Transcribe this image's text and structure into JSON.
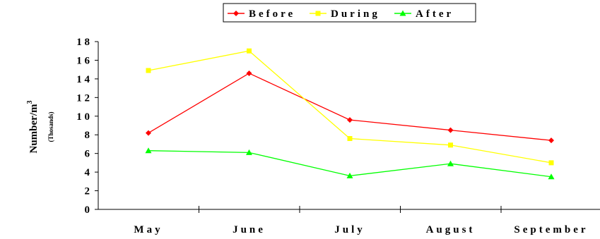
{
  "chart_data": {
    "type": "line",
    "categories": [
      "May",
      "June",
      "July",
      "August",
      "September"
    ],
    "series": [
      {
        "name": "Before",
        "color": "#ff0000",
        "marker": "diamond",
        "values": [
          8.2,
          14.6,
          9.6,
          8.5,
          7.4
        ]
      },
      {
        "name": "During",
        "color": "#ffff00",
        "marker": "square",
        "values": [
          14.9,
          17.0,
          7.6,
          6.9,
          5.0
        ]
      },
      {
        "name": "After",
        "color": "#00ff00",
        "marker": "triangle",
        "values": [
          6.3,
          6.1,
          3.6,
          4.9,
          3.5
        ]
      }
    ],
    "ylabel": "Number/m",
    "ylabel_superscript": "3",
    "ylabel_sub": "(Thosands)",
    "ylim": [
      0,
      18
    ],
    "yticks": [
      0,
      2,
      4,
      6,
      8,
      10,
      12,
      14,
      16,
      18
    ],
    "yticks_labels": [
      "0",
      "2",
      "4",
      "6",
      "8",
      "1 0",
      "1 2",
      "1 4",
      "1 6",
      "1 8"
    ],
    "grid": false,
    "legend_position": "top-center"
  }
}
